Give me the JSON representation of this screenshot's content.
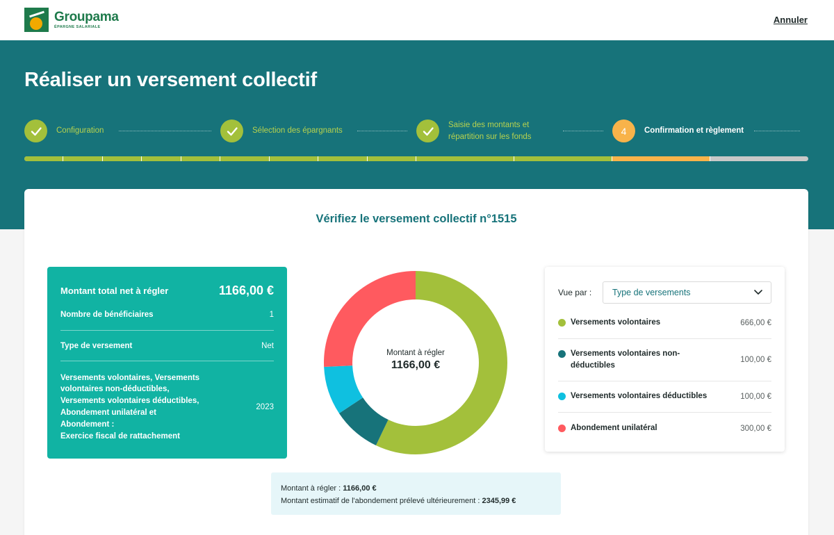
{
  "header": {
    "brand_name": "Groupama",
    "brand_sub": "ÉPARGNE SALARIALE",
    "cancel_label": "Annuler"
  },
  "page": {
    "title": "Réaliser un versement collectif"
  },
  "stepper": {
    "steps": [
      {
        "label": "Configuration",
        "status": "done"
      },
      {
        "label": "Sélection des épargnants",
        "status": "done"
      },
      {
        "label_line1": "Saisie des montants et",
        "label_line2": "répartition sur les fonds",
        "status": "done"
      },
      {
        "number": "4",
        "label": "Confirmation et règlement",
        "status": "active"
      }
    ],
    "progress_done_fraction": 0.75,
    "progress_active_fraction": 0.125
  },
  "card": {
    "title": "Vérifiez le versement collectif n°1515"
  },
  "summary": {
    "total_label": "Montant total net à régler",
    "total_value": "1166,00 €",
    "beneficiaries_label": "Nombre de bénéficiaires",
    "beneficiaries_value": "1",
    "type_label": "Type de versement",
    "type_value": "Net",
    "fiscal_label_lines": [
      "Versements volontaires, Versements",
      "volontaires non-déductibles,",
      "Versements volontaires déductibles,",
      "Abondement unilatéral et",
      "Abondement :",
      "Exercice fiscal de rattachement"
    ],
    "fiscal_value": "2023"
  },
  "chart_data": {
    "type": "pie",
    "categories": [
      "Versements volontaires",
      "Versements volontaires non-déductibles",
      "Versements volontaires déductibles",
      "Abondement unilatéral"
    ],
    "values": [
      666.0,
      100.0,
      100.0,
      300.0
    ],
    "colors": [
      "#a3c03b",
      "#17737a",
      "#0fc0e0",
      "#ff5a5f"
    ],
    "center_label": "Montant à régler",
    "center_value": "1166,00 €"
  },
  "legend": {
    "view_label": "Vue par :",
    "select_value": "Type de versements",
    "items": [
      {
        "label": "Versements volontaires",
        "value": "666,00 €",
        "color": "#a3c03b"
      },
      {
        "label_line1": "Versements volontaires non-",
        "label_line2": "déductibles",
        "value": "100,00 €",
        "color": "#17737a"
      },
      {
        "label": "Versements volontaires déductibles",
        "value": "100,00 €",
        "color": "#0fc0e0"
      },
      {
        "label": "Abondement unilatéral",
        "value": "300,00 €",
        "color": "#ff5a5f"
      }
    ]
  },
  "note": {
    "line1_label": "Montant à régler : ",
    "line1_value": "1166,00 €",
    "line2_label": "Montant estimatif de l'abondement prélevé ultérieurement : ",
    "line2_value": "2345,99 €"
  }
}
